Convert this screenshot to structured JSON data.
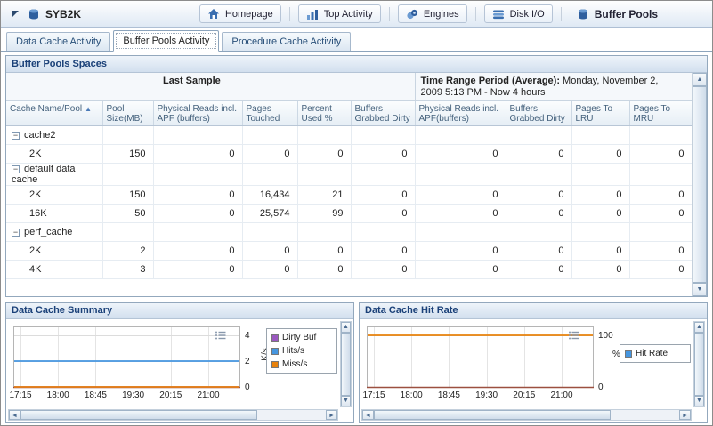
{
  "header": {
    "app_label": "SYB2K",
    "nav": [
      {
        "label": "Homepage"
      },
      {
        "label": "Top Activity"
      },
      {
        "label": "Engines"
      },
      {
        "label": "Disk I/O"
      },
      {
        "label": "Buffer Pools"
      }
    ]
  },
  "tabs": [
    {
      "label": "Data Cache Activity",
      "active": false
    },
    {
      "label": "Buffer Pools Activity",
      "active": true
    },
    {
      "label": "Procedure Cache Activity",
      "active": false
    }
  ],
  "table_panel": {
    "title": "Buffer Pools Spaces",
    "group_headers": {
      "last_sample": "Last Sample",
      "time_range_bold": "Time Range Period (Average):",
      "time_range_value": " Monday, November 2, 2009  5:13 PM - Now  4 hours"
    },
    "columns": [
      "Cache Name/Pool",
      "Pool Size(MB)",
      "Physical Reads incl. APF (buffers)",
      "Pages Touched",
      "Percent Used %",
      "Buffers Grabbed Dirty",
      "Physical Reads incl. APF(buffers)",
      "Buffers Grabbed Dirty",
      "Pages To LRU",
      "Pages To MRU"
    ],
    "rows": [
      {
        "type": "group",
        "name": "cache2",
        "values": [
          "",
          "",
          "",
          "",
          "",
          "",
          "",
          "",
          ""
        ]
      },
      {
        "type": "data",
        "name": "2K",
        "values": [
          "150",
          "0",
          "0",
          "0",
          "0",
          "0",
          "0",
          "0",
          "0"
        ]
      },
      {
        "type": "group",
        "name": "default data cache",
        "values": [
          "",
          "",
          "",
          "",
          "",
          "",
          "",
          "",
          ""
        ]
      },
      {
        "type": "data",
        "name": "2K",
        "values": [
          "150",
          "0",
          "16,434",
          "21",
          "0",
          "0",
          "0",
          "0",
          "0"
        ]
      },
      {
        "type": "data",
        "name": "16K",
        "values": [
          "50",
          "0",
          "25,574",
          "99",
          "0",
          "0",
          "0",
          "0",
          "0"
        ]
      },
      {
        "type": "group",
        "name": "perf_cache",
        "values": [
          "",
          "",
          "",
          "",
          "",
          "",
          "",
          "",
          ""
        ]
      },
      {
        "type": "data",
        "name": "2K",
        "values": [
          "2",
          "0",
          "0",
          "0",
          "0",
          "0",
          "0",
          "0",
          "0"
        ]
      },
      {
        "type": "data",
        "name": "4K",
        "values": [
          "3",
          "0",
          "0",
          "0",
          "0",
          "0",
          "0",
          "0",
          "0"
        ]
      }
    ]
  },
  "chart_data": [
    {
      "type": "line",
      "title": "Data Cache Summary",
      "x": [
        "17:15",
        "18:00",
        "18:45",
        "19:30",
        "20:15",
        "21:00"
      ],
      "ylabel": "K/s",
      "ylim": [
        0,
        4
      ],
      "yticks": [
        0,
        2,
        4
      ],
      "grid": true,
      "legend_position": "right",
      "series": [
        {
          "name": "Dirty Buf",
          "color": "#9b59c0",
          "values": [
            0,
            0,
            0,
            0,
            0,
            0
          ]
        },
        {
          "name": "Hits/s",
          "color": "#4596e0",
          "values": [
            2,
            2,
            2,
            2,
            2,
            2
          ]
        },
        {
          "name": "Miss/s",
          "color": "#e8820c",
          "values": [
            0,
            0,
            0,
            0,
            0,
            0
          ]
        }
      ]
    },
    {
      "type": "line",
      "title": "Data Cache Hit Rate",
      "x": [
        "17:15",
        "18:00",
        "18:45",
        "19:30",
        "20:15",
        "21:00"
      ],
      "ylabel": "%",
      "ylim": [
        0,
        100
      ],
      "yticks": [
        0,
        100
      ],
      "grid": true,
      "legend_position": "right",
      "series": [
        {
          "name": "Hit Rate",
          "legend_color": "#4596e0",
          "color": "#e8820c",
          "values": [
            100,
            100,
            100,
            100,
            100,
            100
          ]
        }
      ]
    }
  ]
}
